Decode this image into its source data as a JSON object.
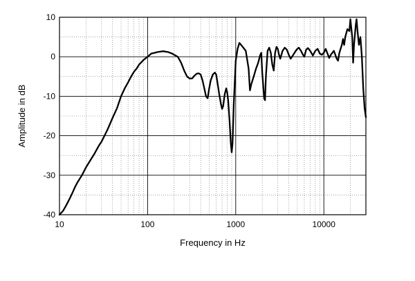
{
  "chart_data": {
    "type": "line",
    "title": "",
    "xlabel": "Frequency in Hz",
    "ylabel": "Amplitude in dB",
    "x_scale": "log",
    "xlim": [
      10,
      30000
    ],
    "ylim": [
      -40,
      10
    ],
    "grid": true,
    "legend": "none",
    "x_tick_labels": [
      "10",
      "100",
      "1000",
      "10000"
    ],
    "x_tick_values": [
      10,
      100,
      1000,
      10000
    ],
    "y_tick_labels": [
      "10",
      "0",
      "-10",
      "-20",
      "-30",
      "-40"
    ],
    "y_tick_values": [
      10,
      0,
      -10,
      -20,
      -30,
      -40
    ],
    "series": [
      {
        "color": "#000000",
        "points": [
          [
            10,
            -40
          ],
          [
            11,
            -39
          ],
          [
            12,
            -37.5
          ],
          [
            13,
            -36
          ],
          [
            14,
            -34.5
          ],
          [
            15,
            -33
          ],
          [
            16,
            -31.8
          ],
          [
            18,
            -30
          ],
          [
            20,
            -28
          ],
          [
            22,
            -26.5
          ],
          [
            25,
            -24.5
          ],
          [
            28,
            -22.5
          ],
          [
            30,
            -21.5
          ],
          [
            35,
            -18.5
          ],
          [
            40,
            -15.5
          ],
          [
            45,
            -13
          ],
          [
            50,
            -10
          ],
          [
            55,
            -8
          ],
          [
            60,
            -6.5
          ],
          [
            65,
            -5
          ],
          [
            70,
            -3.8
          ],
          [
            75,
            -3
          ],
          [
            80,
            -2
          ],
          [
            90,
            -0.8
          ],
          [
            100,
            0
          ],
          [
            110,
            0.8
          ],
          [
            120,
            1
          ],
          [
            130,
            1.2
          ],
          [
            140,
            1.3
          ],
          [
            150,
            1.4
          ],
          [
            170,
            1.2
          ],
          [
            190,
            0.8
          ],
          [
            200,
            0.5
          ],
          [
            220,
            0
          ],
          [
            240,
            -1.5
          ],
          [
            260,
            -3.5
          ],
          [
            280,
            -5
          ],
          [
            300,
            -5.5
          ],
          [
            320,
            -5.5
          ],
          [
            340,
            -4.8
          ],
          [
            360,
            -4.3
          ],
          [
            380,
            -4.2
          ],
          [
            400,
            -4.5
          ],
          [
            420,
            -6
          ],
          [
            440,
            -8
          ],
          [
            460,
            -10
          ],
          [
            480,
            -10.5
          ],
          [
            500,
            -8
          ],
          [
            520,
            -6
          ],
          [
            550,
            -4.5
          ],
          [
            580,
            -4
          ],
          [
            600,
            -4.5
          ],
          [
            620,
            -6.5
          ],
          [
            650,
            -9.5
          ],
          [
            680,
            -12
          ],
          [
            700,
            -13.2
          ],
          [
            720,
            -12.5
          ],
          [
            750,
            -9.5
          ],
          [
            780,
            -8
          ],
          [
            800,
            -9
          ],
          [
            820,
            -11
          ],
          [
            850,
            -16
          ],
          [
            880,
            -22
          ],
          [
            900,
            -24.2
          ],
          [
            920,
            -22
          ],
          [
            950,
            -12
          ],
          [
            1000,
            -1
          ],
          [
            1050,
            2
          ],
          [
            1100,
            3.5
          ],
          [
            1150,
            3
          ],
          [
            1200,
            2.5
          ],
          [
            1300,
            1.5
          ],
          [
            1400,
            -3
          ],
          [
            1450,
            -8.5
          ],
          [
            1500,
            -7
          ],
          [
            1600,
            -5
          ],
          [
            1700,
            -3
          ],
          [
            1800,
            -1.5
          ],
          [
            1900,
            0.5
          ],
          [
            1950,
            1
          ],
          [
            2000,
            -4
          ],
          [
            2100,
            -10.5
          ],
          [
            2150,
            -11
          ],
          [
            2200,
            -5
          ],
          [
            2300,
            1.5
          ],
          [
            2400,
            2.3
          ],
          [
            2500,
            1
          ],
          [
            2600,
            -2
          ],
          [
            2700,
            -3.5
          ],
          [
            2800,
            1
          ],
          [
            2900,
            2.5
          ],
          [
            3000,
            2
          ],
          [
            3100,
            0.5
          ],
          [
            3200,
            -0.5
          ],
          [
            3300,
            0.5
          ],
          [
            3400,
            1.5
          ],
          [
            3600,
            2.3
          ],
          [
            3800,
            1.8
          ],
          [
            4000,
            0.5
          ],
          [
            4200,
            -0.5
          ],
          [
            4500,
            0.5
          ],
          [
            4800,
            1.5
          ],
          [
            5000,
            2
          ],
          [
            5200,
            2.3
          ],
          [
            5500,
            1.5
          ],
          [
            5800,
            0.5
          ],
          [
            6000,
            0
          ],
          [
            6300,
            1.8
          ],
          [
            6600,
            2.2
          ],
          [
            7000,
            1.5
          ],
          [
            7500,
            0.3
          ],
          [
            8000,
            1.5
          ],
          [
            8500,
            2
          ],
          [
            9000,
            0.8
          ],
          [
            9500,
            0.5
          ],
          [
            10000,
            1
          ],
          [
            10500,
            2
          ],
          [
            11000,
            0.8
          ],
          [
            11500,
            -0.3
          ],
          [
            12000,
            0.5
          ],
          [
            13000,
            1.5
          ],
          [
            14000,
            -0.5
          ],
          [
            14500,
            -1
          ],
          [
            15000,
            1
          ],
          [
            16000,
            3
          ],
          [
            16500,
            4.5
          ],
          [
            17000,
            3
          ],
          [
            17500,
            5
          ],
          [
            18500,
            7
          ],
          [
            19500,
            6.5
          ],
          [
            20000,
            9.5
          ],
          [
            21000,
            5
          ],
          [
            21500,
            -1.5
          ],
          [
            22000,
            3
          ],
          [
            23000,
            8
          ],
          [
            23500,
            9.5
          ],
          [
            24000,
            7
          ],
          [
            25000,
            3
          ],
          [
            26000,
            5
          ],
          [
            27000,
            0
          ],
          [
            28000,
            -8
          ],
          [
            29000,
            -13
          ],
          [
            30000,
            -15.3
          ]
        ]
      }
    ]
  }
}
